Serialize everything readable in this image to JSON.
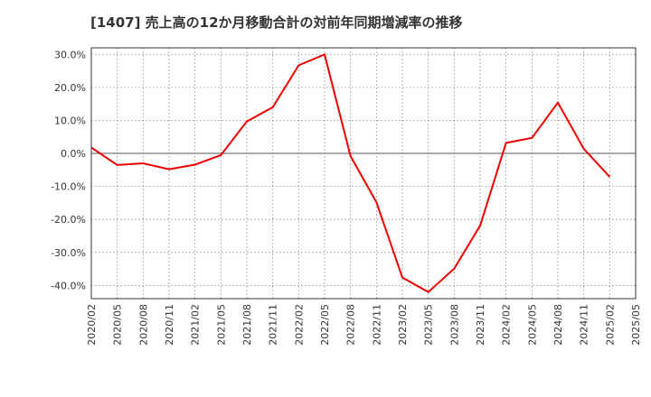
{
  "chart_data": {
    "type": "line",
    "title": "[1407]  売上高の12か月移動合計の対前年同期増減率の推移",
    "xlabel": "",
    "ylabel": "",
    "x_tick_labels": [
      "2020/02",
      "2020/05",
      "2020/08",
      "2020/11",
      "2021/02",
      "2021/05",
      "2021/08",
      "2021/11",
      "2022/02",
      "2022/05",
      "2022/08",
      "2022/11",
      "2023/02",
      "2023/05",
      "2023/08",
      "2023/11",
      "2024/02",
      "2024/05",
      "2024/08",
      "2024/11",
      "2025/02",
      "2025/05"
    ],
    "y_ticks": [
      30,
      20,
      10,
      0,
      -10,
      -20,
      -30,
      -40
    ],
    "y_tick_labels": [
      "30.0%",
      "20.0%",
      "10.0%",
      "0.0%",
      "-10.0%",
      "-20.0%",
      "-30.0%",
      "-40.0%"
    ],
    "ylim": [
      -44,
      32
    ],
    "grid": true,
    "line_color": "#ee0000",
    "series": [
      {
        "name": "対前年同期増減率",
        "x": [
          "2020/02",
          "2020/05",
          "2020/08",
          "2020/11",
          "2021/02",
          "2021/05",
          "2021/08",
          "2021/11",
          "2022/02",
          "2022/05",
          "2022/08",
          "2022/11",
          "2023/02",
          "2023/05",
          "2023/08",
          "2023/11",
          "2024/02",
          "2024/05",
          "2024/08",
          "2024/11",
          "2025/02"
        ],
        "values": [
          1.8,
          -3.5,
          -3.0,
          -4.8,
          -3.4,
          -0.5,
          9.7,
          14.0,
          26.7,
          30.0,
          -0.8,
          -14.8,
          -37.6,
          -42.0,
          -34.9,
          -21.9,
          3.2,
          4.7,
          15.4,
          1.4,
          -7.1
        ]
      }
    ]
  }
}
